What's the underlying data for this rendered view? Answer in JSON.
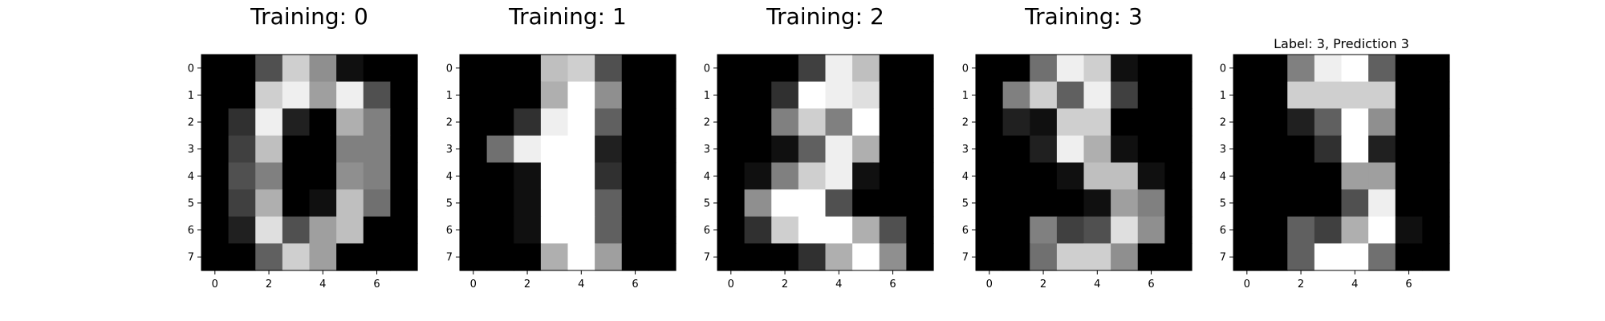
{
  "chart_data": [
    {
      "type": "heatmap",
      "title": "Training: 0",
      "colormap": "gray_r-inverted (0=black, 16=white)",
      "vmin": 0,
      "vmax": 16,
      "xticks": [
        "0",
        "2",
        "4",
        "6"
      ],
      "yticks": [
        "0",
        "1",
        "2",
        "3",
        "4",
        "5",
        "6",
        "7"
      ],
      "values": [
        [
          0,
          0,
          5,
          13,
          9,
          1,
          0,
          0
        ],
        [
          0,
          0,
          13,
          15,
          10,
          15,
          5,
          0
        ],
        [
          0,
          3,
          15,
          2,
          0,
          11,
          8,
          0
        ],
        [
          0,
          4,
          12,
          0,
          0,
          8,
          8,
          0
        ],
        [
          0,
          5,
          8,
          0,
          0,
          9,
          8,
          0
        ],
        [
          0,
          4,
          11,
          0,
          1,
          12,
          7,
          0
        ],
        [
          0,
          2,
          14,
          5,
          10,
          12,
          0,
          0
        ],
        [
          0,
          0,
          6,
          13,
          10,
          0,
          0,
          0
        ]
      ]
    },
    {
      "type": "heatmap",
      "title": "Training: 1",
      "colormap": "gray_r-inverted (0=black, 16=white)",
      "vmin": 0,
      "vmax": 16,
      "xticks": [
        "0",
        "2",
        "4",
        "6"
      ],
      "yticks": [
        "0",
        "1",
        "2",
        "3",
        "4",
        "5",
        "6",
        "7"
      ],
      "values": [
        [
          0,
          0,
          0,
          12,
          13,
          5,
          0,
          0
        ],
        [
          0,
          0,
          0,
          11,
          16,
          9,
          0,
          0
        ],
        [
          0,
          0,
          3,
          15,
          16,
          6,
          0,
          0
        ],
        [
          0,
          7,
          15,
          16,
          16,
          2,
          0,
          0
        ],
        [
          0,
          0,
          1,
          16,
          16,
          3,
          0,
          0
        ],
        [
          0,
          0,
          1,
          16,
          16,
          6,
          0,
          0
        ],
        [
          0,
          0,
          1,
          16,
          16,
          6,
          0,
          0
        ],
        [
          0,
          0,
          0,
          11,
          16,
          10,
          0,
          0
        ]
      ]
    },
    {
      "type": "heatmap",
      "title": "Training: 2",
      "colormap": "gray_r-inverted (0=black, 16=white)",
      "vmin": 0,
      "vmax": 16,
      "xticks": [
        "0",
        "2",
        "4",
        "6"
      ],
      "yticks": [
        "0",
        "1",
        "2",
        "3",
        "4",
        "5",
        "6",
        "7"
      ],
      "values": [
        [
          0,
          0,
          0,
          4,
          15,
          12,
          0,
          0
        ],
        [
          0,
          0,
          3,
          16,
          15,
          14,
          0,
          0
        ],
        [
          0,
          0,
          8,
          13,
          8,
          16,
          0,
          0
        ],
        [
          0,
          0,
          1,
          6,
          15,
          11,
          0,
          0
        ],
        [
          0,
          1,
          8,
          13,
          15,
          1,
          0,
          0
        ],
        [
          0,
          9,
          16,
          16,
          5,
          0,
          0,
          0
        ],
        [
          0,
          3,
          13,
          16,
          16,
          11,
          5,
          0
        ],
        [
          0,
          0,
          0,
          3,
          11,
          16,
          9,
          0
        ]
      ]
    },
    {
      "type": "heatmap",
      "title": "Training: 3",
      "colormap": "gray_r-inverted (0=black, 16=white)",
      "vmin": 0,
      "vmax": 16,
      "xticks": [
        "0",
        "2",
        "4",
        "6"
      ],
      "yticks": [
        "0",
        "1",
        "2",
        "3",
        "4",
        "5",
        "6",
        "7"
      ],
      "values": [
        [
          0,
          0,
          7,
          15,
          13,
          1,
          0,
          0
        ],
        [
          0,
          8,
          13,
          6,
          15,
          4,
          0,
          0
        ],
        [
          0,
          2,
          1,
          13,
          13,
          0,
          0,
          0
        ],
        [
          0,
          0,
          2,
          15,
          11,
          1,
          0,
          0
        ],
        [
          0,
          0,
          0,
          1,
          12,
          12,
          1,
          0
        ],
        [
          0,
          0,
          0,
          0,
          1,
          10,
          8,
          0
        ],
        [
          0,
          0,
          8,
          4,
          5,
          14,
          9,
          0
        ],
        [
          0,
          0,
          7,
          13,
          13,
          9,
          0,
          0
        ]
      ]
    },
    {
      "type": "heatmap",
      "title": "Label: 3, Prediction 3",
      "colormap": "gray_r-inverted (0=black, 16=white)",
      "vmin": 0,
      "vmax": 16,
      "xticks": [
        "0",
        "2",
        "4",
        "6"
      ],
      "yticks": [
        "0",
        "1",
        "2",
        "3",
        "4",
        "5",
        "6",
        "7"
      ],
      "values": [
        [
          0,
          0,
          8,
          15,
          16,
          6,
          0,
          0
        ],
        [
          0,
          0,
          13,
          13,
          13,
          13,
          0,
          0
        ],
        [
          0,
          0,
          2,
          6,
          16,
          9,
          0,
          0
        ],
        [
          0,
          0,
          0,
          3,
          16,
          2,
          0,
          0
        ],
        [
          0,
          0,
          0,
          0,
          10,
          10,
          0,
          0
        ],
        [
          0,
          0,
          0,
          0,
          5,
          15,
          0,
          0
        ],
        [
          0,
          0,
          6,
          4,
          11,
          16,
          1,
          0
        ],
        [
          0,
          0,
          6,
          16,
          16,
          7,
          0,
          0
        ]
      ]
    }
  ]
}
